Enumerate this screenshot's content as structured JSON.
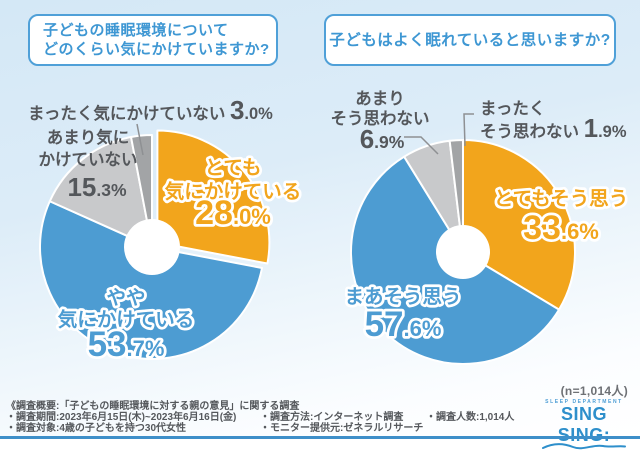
{
  "questions": [
    {
      "box_lines": [
        "子どもの睡眠環境について",
        "どのくらい気にかけていますか?"
      ]
    },
    {
      "box_lines": [
        "子どもはよく眠れていると思いますか?"
      ]
    }
  ],
  "sample_note": "(n=1,014人)",
  "chart_data": [
    {
      "type": "pie",
      "donut": true,
      "question": "子どもの睡眠環境についてどのくらい気にかけていますか?",
      "unit": "%",
      "start_angle": "top",
      "direction": "clockwise",
      "segments": [
        {
          "label": "とても気にかけている",
          "label_lines": [
            "とても",
            "気にかけている"
          ],
          "value": 28.0,
          "value_display": "28.0%",
          "color": "#F2A51C",
          "text_style": "outlined",
          "exploded": true
        },
        {
          "label": "やや気にかけている",
          "label_lines": [
            "やや",
            "気にかけている"
          ],
          "value": 53.7,
          "value_display": "53.7%",
          "color": "#4D9CD2",
          "text_style": "outlined",
          "exploded": false
        },
        {
          "label": "あまり気にかけていない",
          "label_lines": [
            "あまり気に",
            "かけていない"
          ],
          "value": 15.3,
          "value_display": "15.3%",
          "color": "#C8C9CB",
          "text_style": "plain",
          "exploded": false
        },
        {
          "label": "まったく気にかけていない",
          "label_lines": [
            "まったく気にかけていない"
          ],
          "value": 3.0,
          "value_display": "3.0%",
          "color": "#A2A4A6",
          "text_style": "plain",
          "exploded": false
        }
      ]
    },
    {
      "type": "pie",
      "donut": true,
      "question": "子どもはよく眠れていると思いますか?",
      "unit": "%",
      "start_angle": "top",
      "direction": "clockwise",
      "segments": [
        {
          "label": "とてもそう思う",
          "label_lines": [
            "とてもそう思う"
          ],
          "value": 33.6,
          "value_display": "33.6%",
          "color": "#F2A51C",
          "text_style": "outlined",
          "exploded": false
        },
        {
          "label": "まあそう思う",
          "label_lines": [
            "まあそう思う"
          ],
          "value": 57.6,
          "value_display": "57.6%",
          "color": "#4D9CD2",
          "text_style": "outlined",
          "exploded": false
        },
        {
          "label": "あまりそう思わない",
          "label_lines": [
            "あまり",
            "そう思わない"
          ],
          "value": 6.9,
          "value_display": "6.9%",
          "color": "#C8C9CB",
          "text_style": "plain",
          "exploded": false
        },
        {
          "label": "まったくそう思わない",
          "label_lines": [
            "まったく",
            "そう思わない"
          ],
          "value": 1.9,
          "value_display": "1.9%",
          "color": "#A2A4A6",
          "text_style": "plain",
          "exploded": false
        }
      ]
    }
  ],
  "footer": {
    "col1": [
      "《調査概要:「子どもの睡眠環境に対する親の意見」に関する調査",
      "・調査期間:2023年6月15日(木)~2023年6月16日(金)",
      "・調査対象:4歳の子どもを持つ30代女性"
    ],
    "col2": [
      "・調査方法:インターネット調査",
      "・モニター提供元:ゼネラルリサーチ"
    ],
    "col3": [
      "・調査人数:1,014人"
    ]
  },
  "logo": {
    "department": "SLEEP DEPARTMENT",
    "brand_word1": "SING",
    "brand_word2": "SING:"
  },
  "colors": {
    "accent_orange": "#F2A51C",
    "accent_blue": "#4D9CD2",
    "gray_light": "#C8C9CB",
    "gray_dark": "#A2A4A6",
    "title_blue": "#3E97D3",
    "box_border_blue": "#4FA0D8",
    "label_gray": "#54575B",
    "leader_gray": "#8E9093",
    "bottom_line_blue": "#3E8FC9"
  }
}
